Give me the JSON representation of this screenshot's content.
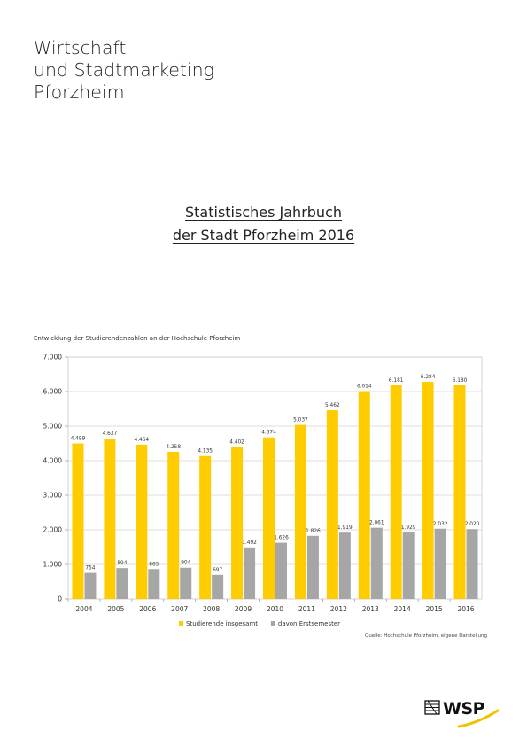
{
  "header": {
    "org_lines": [
      "Wirtschaft",
      "und Stadtmarketing",
      "Pforzheim"
    ]
  },
  "document": {
    "title_lines": [
      "Statistisches Jahrbuch",
      "der Stadt Pforzheim 2016"
    ]
  },
  "chart_heading": "Entwicklung der Studierendenzahlen an der Hochschule Pforzheim",
  "source": "Quelle: Hochschule Pforzheim, eigene Darstellung",
  "logo": {
    "text": "WSP",
    "accent": "#f2c200"
  },
  "chart_data": {
    "type": "bar",
    "title": "Entwicklung der Studierendenzahlen an der Hochschule Pforzheim",
    "categories": [
      "2004",
      "2005",
      "2006",
      "2007",
      "2008",
      "2009",
      "2010",
      "2011",
      "2012",
      "2013",
      "2014",
      "2015",
      "2016"
    ],
    "series": [
      {
        "name": "Studierende insgesamt",
        "color": "#ffcc00",
        "values": [
          4499,
          4637,
          4464,
          4258,
          4135,
          4402,
          4674,
          5037,
          5462,
          6014,
          6181,
          6284,
          6180
        ],
        "labels": [
          "4.499",
          "4.637",
          "4.464",
          "4.258",
          "4.135",
          "4.402",
          "4.674",
          "5.037",
          "5.462",
          "6.014",
          "6.181",
          "6.284",
          "6.180"
        ]
      },
      {
        "name": "davon Erstsemester",
        "color": "#a6a6a6",
        "values": [
          754,
          894,
          865,
          904,
          697,
          1492,
          1626,
          1826,
          1919,
          2061,
          1929,
          2032,
          2020
        ],
        "labels": [
          "754",
          "894",
          "865",
          "904",
          "697",
          "1.492",
          "1.626",
          "1.826",
          "1.919",
          "2.061",
          "1.929",
          "2.032",
          "2.020"
        ]
      }
    ],
    "ylim": [
      0,
      7000
    ],
    "yticks": [
      0,
      1000,
      2000,
      3000,
      4000,
      5000,
      6000,
      7000
    ],
    "ytick_labels": [
      "0",
      "1.000",
      "2.000",
      "3.000",
      "4.000",
      "5.000",
      "6.000",
      "7.000"
    ],
    "grid": true,
    "legend_position": "bottom-center",
    "xlabel": "",
    "ylabel": ""
  }
}
